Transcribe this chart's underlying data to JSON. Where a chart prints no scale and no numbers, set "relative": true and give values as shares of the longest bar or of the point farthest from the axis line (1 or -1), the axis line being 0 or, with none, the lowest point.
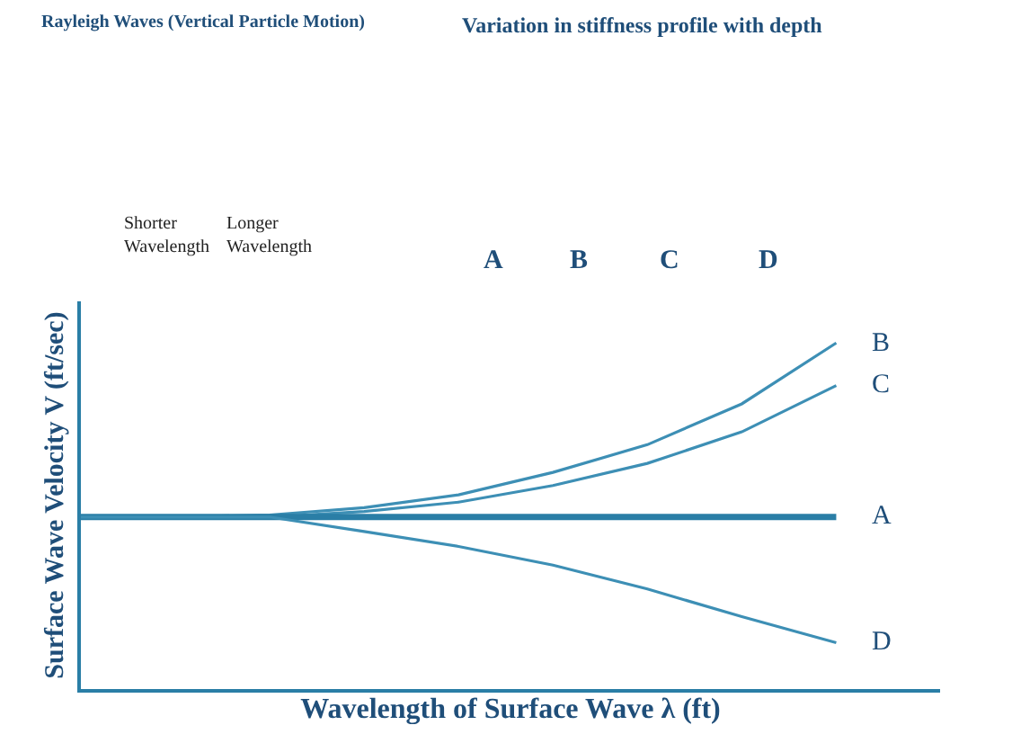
{
  "chart_data": {
    "type": "line",
    "relative": true,
    "xlabel": "Wavelength of Surface Wave λ (ft)",
    "ylabel": "Surface Wave Velocity V (ft/sec)",
    "categories": [
      null,
      null,
      null,
      null,
      null,
      null,
      null,
      null,
      null
    ],
    "series": [
      {
        "name": "B",
        "color": "#3d8fb5",
        "values": [
          0.497,
          0.497,
          0.503,
          0.524,
          0.561,
          0.626,
          0.706,
          0.824,
          1.0
        ]
      },
      {
        "name": "C",
        "color": "#3d8fb5",
        "values": [
          0.497,
          0.497,
          0.497,
          0.513,
          0.54,
          0.588,
          0.652,
          0.743,
          0.877
        ]
      },
      {
        "name": "A",
        "color": "#2a7ea6",
        "values": [
          0.497,
          0.497,
          0.497,
          0.497,
          0.497,
          0.497,
          0.497,
          0.497,
          0.497
        ]
      },
      {
        "name": "D",
        "color": "#3d8fb5",
        "values": [
          0.497,
          0.497,
          0.497,
          0.455,
          0.412,
          0.358,
          0.289,
          0.209,
          0.134
        ]
      }
    ],
    "annotations": [
      "Rayleigh Waves (Vertical Particle Motion)",
      "Variation in stiffness profile with depth",
      "Shorter Wavelength",
      "Longer Wavelength",
      "A",
      "B",
      "C",
      "D"
    ],
    "legend": false,
    "marker": "none",
    "line_style": "solid"
  }
}
